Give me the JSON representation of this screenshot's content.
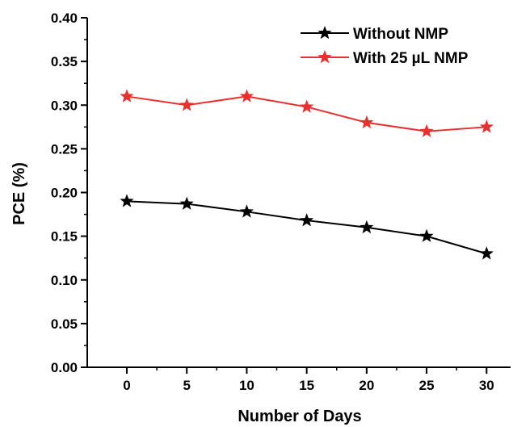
{
  "chart_data": {
    "type": "line",
    "xlabel": "Number of Days",
    "ylabel": "PCE (%)",
    "xlim": [
      -3.3,
      32
    ],
    "ylim": [
      0,
      0.4
    ],
    "xticks": [
      "0",
      "5",
      "10",
      "15",
      "20",
      "25",
      "30"
    ],
    "yticks": [
      "0.00",
      "0.05",
      "0.10",
      "0.15",
      "0.20",
      "0.25",
      "0.30",
      "0.35",
      "0.40"
    ],
    "x": [
      0,
      5,
      10,
      15,
      20,
      25,
      30
    ],
    "series": [
      {
        "name": "Without NMP",
        "color": "#000000",
        "marker": "star",
        "values": [
          0.19,
          0.187,
          0.178,
          0.168,
          0.16,
          0.15,
          0.13
        ]
      },
      {
        "name": "With 25 µL NMP",
        "color": "#e8312f",
        "marker": "star",
        "values": [
          0.31,
          0.3,
          0.31,
          0.298,
          0.28,
          0.27,
          0.275
        ]
      }
    ],
    "legend_position": "top-right",
    "grid": false
  }
}
